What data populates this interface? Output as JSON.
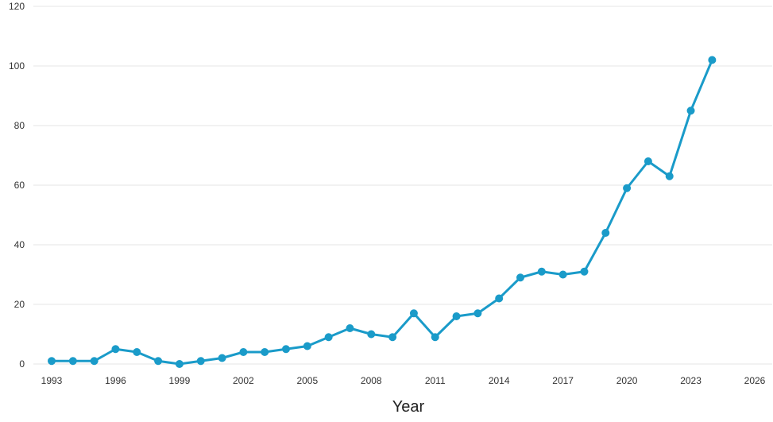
{
  "chart_data": {
    "type": "line",
    "title": "",
    "xlabel": "Year",
    "ylabel": "",
    "xlim": [
      1993,
      2026
    ],
    "ylim": [
      0,
      120
    ],
    "x_ticks": [
      1993,
      1996,
      1999,
      2002,
      2005,
      2008,
      2011,
      2014,
      2017,
      2020,
      2023,
      2026
    ],
    "y_ticks": [
      0,
      20,
      40,
      60,
      80,
      100,
      120
    ],
    "grid": "horizontal",
    "legend": "none",
    "color": "#1a9bc9",
    "series": [
      {
        "x": [
          1993,
          1994,
          1995,
          1996,
          1997,
          1998,
          1999,
          2000,
          2001,
          2002,
          2003,
          2004,
          2005,
          2006,
          2007,
          2008,
          2009,
          2010,
          2011,
          2012,
          2013,
          2014,
          2015,
          2016,
          2017,
          2018,
          2019,
          2020,
          2021,
          2022,
          2023,
          2024
        ],
        "values": [
          1,
          1,
          1,
          5,
          4,
          1,
          0,
          1,
          2,
          4,
          4,
          5,
          6,
          9,
          12,
          10,
          9,
          17,
          9,
          16,
          17,
          22,
          29,
          31,
          30,
          31,
          44,
          59,
          68,
          63,
          85,
          102
        ]
      }
    ]
  }
}
